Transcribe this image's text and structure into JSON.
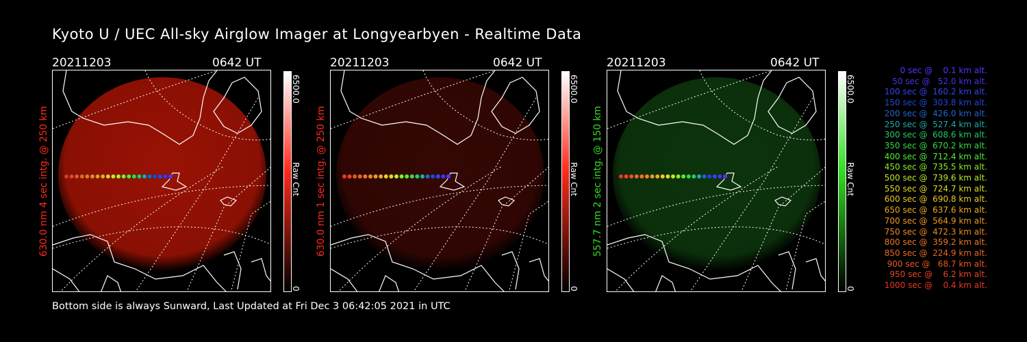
{
  "title": "Kyoto U / UEC All-sky Airglow Imager at Longyearbyen - Realtime Data",
  "footer": "Bottom side is always Sunward, Last Updated at Fri Dec  3 06:42:05 2021 in UTC",
  "panels": [
    {
      "date": "20211203",
      "time": "0642 UT",
      "side_label": "630.0 nm 4 sec intg. @ 250 km",
      "cbar_max": "6500.0",
      "cbar_min": "0",
      "cbar_unit": "Raw Cnt",
      "color": "#ff2a1a",
      "glow": "#b41505",
      "glow_opacity": 0.85
    },
    {
      "date": "20211203",
      "time": "0642 UT",
      "side_label": "630.0 nm 1 sec intg. @ 250 km",
      "cbar_max": "6500.0",
      "cbar_min": "0",
      "cbar_unit": "Raw Cnt",
      "color": "#ff2a1a",
      "glow": "#3a0804",
      "glow_opacity": 0.9
    },
    {
      "date": "20211203",
      "time": "0642 UT",
      "side_label": "557.7 nm 2 sec intg. @ 150 km",
      "cbar_max": "6500.0",
      "cbar_min": "0",
      "cbar_unit": "Raw Cnt",
      "color": "#33dd22",
      "glow": "#0d3a0d",
      "glow_opacity": 0.9
    }
  ],
  "legend": [
    {
      "text": "   0 sec @    0.1 km alt.",
      "color": "#5533ff"
    },
    {
      "text": "  50 sec @   52.0 km alt.",
      "color": "#4433ee"
    },
    {
      "text": " 100 sec @  160.2 km alt.",
      "color": "#3344ee"
    },
    {
      "text": " 150 sec @  303.8 km alt.",
      "color": "#2244dd"
    },
    {
      "text": " 200 sec @  426.0 km alt.",
      "color": "#2266cc"
    },
    {
      "text": " 250 sec @  527.4 km alt.",
      "color": "#22aaaa"
    },
    {
      "text": " 300 sec @  608.6 km alt.",
      "color": "#22cc66"
    },
    {
      "text": " 350 sec @  670.2 km alt.",
      "color": "#33dd44"
    },
    {
      "text": " 400 sec @  712.4 km alt.",
      "color": "#55ee33"
    },
    {
      "text": " 450 sec @  735.5 km alt.",
      "color": "#88ee22"
    },
    {
      "text": " 500 sec @  739.6 km alt.",
      "color": "#bbee22"
    },
    {
      "text": " 550 sec @  724.7 km alt.",
      "color": "#dddd22"
    },
    {
      "text": " 600 sec @  690.8 km alt.",
      "color": "#eecc22"
    },
    {
      "text": " 650 sec @  637.6 km alt.",
      "color": "#eeaa22"
    },
    {
      "text": " 700 sec @  564.9 km alt.",
      "color": "#ee9922"
    },
    {
      "text": " 750 sec @  472.3 km alt.",
      "color": "#ee8822"
    },
    {
      "text": " 800 sec @  359.2 km alt.",
      "color": "#ee7722"
    },
    {
      "text": " 850 sec @  224.9 km alt.",
      "color": "#ee6622"
    },
    {
      "text": " 900 sec @   68.7 km alt.",
      "color": "#ee5522"
    },
    {
      "text": " 950 sec @    6.2 km alt.",
      "color": "#ee4422"
    },
    {
      "text": "1000 sec @    0.4 km alt.",
      "color": "#ee3322"
    }
  ]
}
